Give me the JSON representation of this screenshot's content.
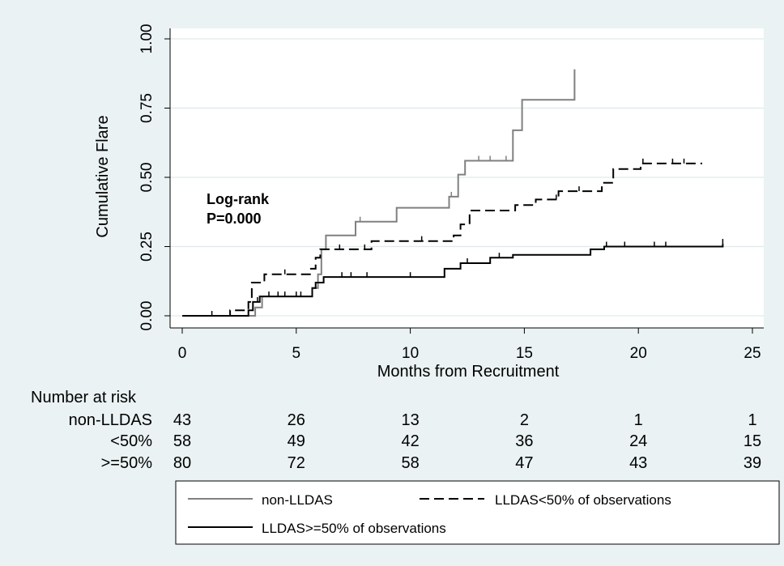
{
  "chart_data": {
    "type": "line",
    "subtype": "kaplan-meier step curves",
    "ylabel": "Cumulative Flare",
    "xlabel": "Months from Recruitment",
    "xlim": [
      0,
      25
    ],
    "ylim": [
      0,
      1
    ],
    "x_ticks": [
      0,
      5,
      10,
      15,
      20,
      25
    ],
    "y_ticks": [
      "0.00",
      "0.25",
      "0.50",
      "0.75",
      "1.00"
    ],
    "grid": true,
    "annotation": [
      "Log-rank",
      "P=0.000"
    ],
    "series": [
      {
        "name": "non-LLDAS",
        "color": "#808080",
        "dash": "solid",
        "steps": [
          [
            0,
            0
          ],
          [
            3.2,
            0
          ],
          [
            3.2,
            0.03
          ],
          [
            3.5,
            0.03
          ],
          [
            3.5,
            0.07
          ],
          [
            5.7,
            0.07
          ],
          [
            5.7,
            0.1
          ],
          [
            5.95,
            0.1
          ],
          [
            5.95,
            0.15
          ],
          [
            6.1,
            0.15
          ],
          [
            6.1,
            0.24
          ],
          [
            6.3,
            0.24
          ],
          [
            6.3,
            0.29
          ],
          [
            7.6,
            0.29
          ],
          [
            7.6,
            0.34
          ],
          [
            9.4,
            0.34
          ],
          [
            9.4,
            0.39
          ],
          [
            11.7,
            0.39
          ],
          [
            11.7,
            0.43
          ],
          [
            12.1,
            0.43
          ],
          [
            12.1,
            0.51
          ],
          [
            12.4,
            0.51
          ],
          [
            12.4,
            0.56
          ],
          [
            14.5,
            0.56
          ],
          [
            14.5,
            0.67
          ],
          [
            14.9,
            0.67
          ],
          [
            14.9,
            0.78
          ],
          [
            17.2,
            0.78
          ],
          [
            17.2,
            0.89
          ]
        ],
        "censored": [
          7.8,
          11.8,
          13.0,
          13.5,
          14.2
        ]
      },
      {
        "name": "LLDAS<50% of observations",
        "color": "#000000",
        "dash": "dashed",
        "steps": [
          [
            0,
            0
          ],
          [
            2.1,
            0
          ],
          [
            2.1,
            0.02
          ],
          [
            2.9,
            0.02
          ],
          [
            2.9,
            0.05
          ],
          [
            3.05,
            0.05
          ],
          [
            3.05,
            0.12
          ],
          [
            3.6,
            0.12
          ],
          [
            3.6,
            0.15
          ],
          [
            5.6,
            0.15
          ],
          [
            5.6,
            0.17
          ],
          [
            5.85,
            0.17
          ],
          [
            5.85,
            0.21
          ],
          [
            6.05,
            0.21
          ],
          [
            6.05,
            0.24
          ],
          [
            8.3,
            0.24
          ],
          [
            8.3,
            0.27
          ],
          [
            11.9,
            0.27
          ],
          [
            11.9,
            0.29
          ],
          [
            12.2,
            0.29
          ],
          [
            12.2,
            0.33
          ],
          [
            12.6,
            0.33
          ],
          [
            12.6,
            0.38
          ],
          [
            14.6,
            0.38
          ],
          [
            14.6,
            0.4
          ],
          [
            15.5,
            0.4
          ],
          [
            15.5,
            0.42
          ],
          [
            16.5,
            0.42
          ],
          [
            16.5,
            0.45
          ],
          [
            18.4,
            0.45
          ],
          [
            18.4,
            0.48
          ],
          [
            18.9,
            0.48
          ],
          [
            18.9,
            0.53
          ],
          [
            20.1,
            0.53
          ],
          [
            20.1,
            0.55
          ],
          [
            22.8,
            0.55
          ]
        ],
        "censored": [
          4.5,
          6.9,
          8.0,
          10.5,
          16.4,
          17.4,
          20.2,
          21.5,
          22.0
        ]
      },
      {
        "name": "LLDAS>=50% of observations",
        "color": "#000000",
        "dash": "solid",
        "steps": [
          [
            0,
            0
          ],
          [
            2.9,
            0
          ],
          [
            2.9,
            0.02
          ],
          [
            3.1,
            0.02
          ],
          [
            3.1,
            0.05
          ],
          [
            3.4,
            0.05
          ],
          [
            3.4,
            0.07
          ],
          [
            5.7,
            0.07
          ],
          [
            5.7,
            0.1
          ],
          [
            5.85,
            0.1
          ],
          [
            5.85,
            0.12
          ],
          [
            6.2,
            0.12
          ],
          [
            6.2,
            0.14
          ],
          [
            11.5,
            0.14
          ],
          [
            11.5,
            0.17
          ],
          [
            12.2,
            0.17
          ],
          [
            12.2,
            0.19
          ],
          [
            13.5,
            0.19
          ],
          [
            13.5,
            0.21
          ],
          [
            14.5,
            0.21
          ],
          [
            14.5,
            0.22
          ],
          [
            17.9,
            0.22
          ],
          [
            17.9,
            0.24
          ],
          [
            18.5,
            0.24
          ],
          [
            18.5,
            0.25
          ],
          [
            23.7,
            0.25
          ],
          [
            23.7,
            0.26
          ]
        ],
        "censored": [
          1.3,
          3.3,
          3.8,
          4.2,
          4.5,
          5.0,
          5.2,
          7.0,
          7.4,
          8.1,
          10.0,
          12.5,
          13.9,
          18.6,
          19.4,
          20.7,
          21.2,
          23.7
        ]
      }
    ]
  },
  "risk_table": {
    "title": "Number at risk",
    "rows": [
      {
        "label": "non-LLDAS",
        "values": [
          "43",
          "26",
          "13",
          "2",
          "1",
          "1"
        ]
      },
      {
        "label": "<50%",
        "values": [
          "58",
          "49",
          "42",
          "36",
          "24",
          "15"
        ]
      },
      {
        "label": ">=50%",
        "values": [
          "80",
          "72",
          "58",
          "47",
          "43",
          "39"
        ]
      }
    ]
  }
}
